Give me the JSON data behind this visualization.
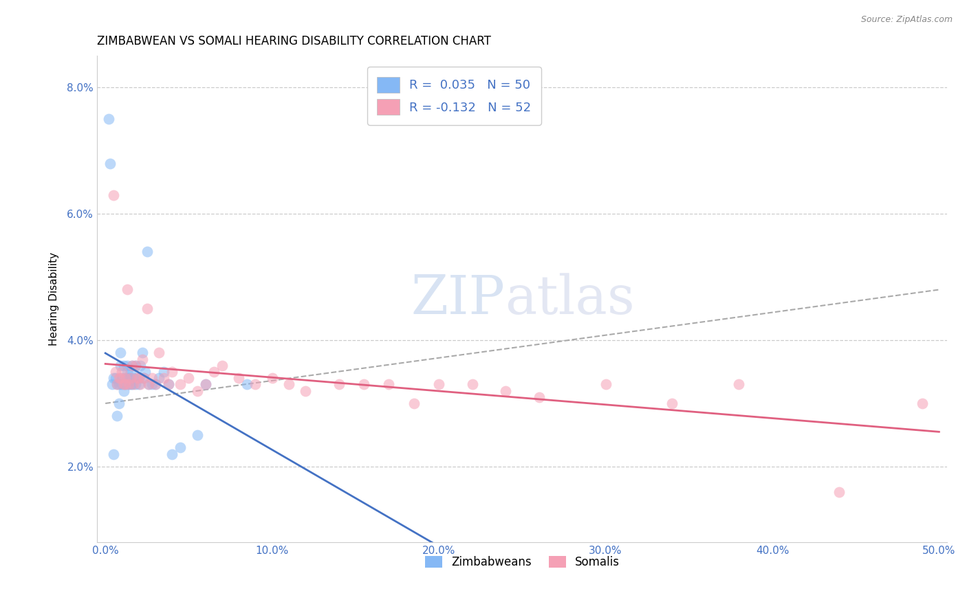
{
  "title": "ZIMBABWEAN VS SOMALI HEARING DISABILITY CORRELATION CHART",
  "source_text": "Source: ZipAtlas.com",
  "xlabel": "",
  "ylabel": "Hearing Disability",
  "xlim": [
    -0.005,
    0.505
  ],
  "ylim": [
    0.008,
    0.085
  ],
  "yticks": [
    0.02,
    0.04,
    0.06,
    0.08
  ],
  "ytick_labels": [
    "2.0%",
    "4.0%",
    "6.0%",
    "8.0%"
  ],
  "xticks": [
    0.0,
    0.1,
    0.2,
    0.3,
    0.4,
    0.5
  ],
  "xtick_labels": [
    "0.0%",
    "10.0%",
    "20.0%",
    "30.0%",
    "40.0%",
    "50.0%"
  ],
  "zimbabwean_color": "#85b8f5",
  "somali_color": "#f5a0b5",
  "zimbabwean_R": 0.035,
  "zimbabwean_N": 50,
  "somali_R": -0.132,
  "somali_N": 52,
  "legend_label_zim": "Zimbabweans",
  "legend_label_som": "Somalis",
  "watermark_part1": "ZIP",
  "watermark_part2": "atlas",
  "background_color": "#ffffff",
  "grid_color": "#cccccc",
  "title_fontsize": 12,
  "axis_label_fontsize": 11,
  "tick_label_color": "#4472c4",
  "scatter_alpha": 0.55,
  "scatter_size": 130,
  "zim_trend_color": "#4472c4",
  "som_trend_color": "#e06080",
  "dash_trend_color": "#aaaaaa",
  "zimbabwean_x": [
    0.002,
    0.003,
    0.004,
    0.005,
    0.005,
    0.006,
    0.007,
    0.007,
    0.008,
    0.008,
    0.009,
    0.009,
    0.01,
    0.01,
    0.011,
    0.011,
    0.012,
    0.012,
    0.013,
    0.013,
    0.013,
    0.014,
    0.014,
    0.015,
    0.015,
    0.015,
    0.016,
    0.016,
    0.017,
    0.018,
    0.018,
    0.019,
    0.02,
    0.02,
    0.021,
    0.022,
    0.023,
    0.024,
    0.025,
    0.026,
    0.028,
    0.03,
    0.032,
    0.035,
    0.038,
    0.04,
    0.045,
    0.055,
    0.06,
    0.085
  ],
  "zimbabwean_y": [
    0.075,
    0.068,
    0.033,
    0.034,
    0.022,
    0.034,
    0.033,
    0.028,
    0.033,
    0.03,
    0.036,
    0.038,
    0.034,
    0.033,
    0.032,
    0.036,
    0.034,
    0.033,
    0.034,
    0.035,
    0.036,
    0.033,
    0.034,
    0.033,
    0.034,
    0.035,
    0.036,
    0.033,
    0.034,
    0.036,
    0.033,
    0.034,
    0.033,
    0.034,
    0.036,
    0.038,
    0.034,
    0.035,
    0.054,
    0.033,
    0.033,
    0.033,
    0.034,
    0.035,
    0.033,
    0.022,
    0.023,
    0.025,
    0.033,
    0.033
  ],
  "somali_x": [
    0.005,
    0.006,
    0.007,
    0.008,
    0.009,
    0.01,
    0.011,
    0.012,
    0.012,
    0.013,
    0.014,
    0.015,
    0.016,
    0.017,
    0.018,
    0.019,
    0.02,
    0.021,
    0.022,
    0.023,
    0.025,
    0.026,
    0.028,
    0.03,
    0.032,
    0.035,
    0.038,
    0.04,
    0.045,
    0.05,
    0.055,
    0.06,
    0.065,
    0.07,
    0.08,
    0.09,
    0.1,
    0.11,
    0.12,
    0.14,
    0.155,
    0.17,
    0.185,
    0.2,
    0.22,
    0.24,
    0.26,
    0.3,
    0.34,
    0.38,
    0.44,
    0.49
  ],
  "somali_y": [
    0.063,
    0.035,
    0.033,
    0.034,
    0.034,
    0.035,
    0.033,
    0.034,
    0.033,
    0.048,
    0.033,
    0.034,
    0.036,
    0.033,
    0.036,
    0.034,
    0.034,
    0.033,
    0.037,
    0.034,
    0.045,
    0.033,
    0.034,
    0.033,
    0.038,
    0.034,
    0.033,
    0.035,
    0.033,
    0.034,
    0.032,
    0.033,
    0.035,
    0.036,
    0.034,
    0.033,
    0.034,
    0.033,
    0.032,
    0.033,
    0.033,
    0.033,
    0.03,
    0.033,
    0.033,
    0.032,
    0.031,
    0.033,
    0.03,
    0.033,
    0.016,
    0.03
  ]
}
